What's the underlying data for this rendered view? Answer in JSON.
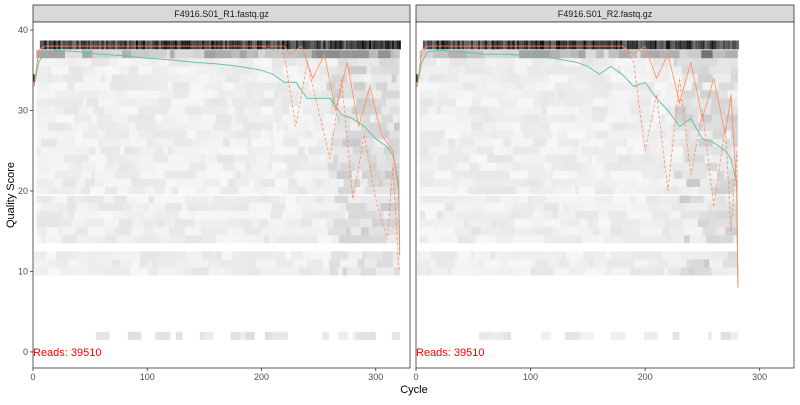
{
  "figure": {
    "y_axis_title": "Quality Score",
    "x_axis_title": "Cycle"
  },
  "colors": {
    "strip_fill": "#d9d9d9",
    "strip_border": "#333333",
    "panel_border": "#333333",
    "mean_line": "#66c2a5",
    "quantile_line": "#fc8d62",
    "reads_text": "#ff0000",
    "tick_text": "#4d4d4d"
  },
  "chart_data": [
    {
      "type": "line",
      "title": "F4916.S01_R1.fastq.gz",
      "reads_label": "Reads:  39510",
      "xlim": [
        0,
        330
      ],
      "ylim": [
        -2,
        41
      ],
      "x_ticks": [
        0,
        100,
        200,
        300
      ],
      "y_ticks": [
        0,
        10,
        20,
        30,
        40
      ],
      "read_length": 321,
      "series": [
        {
          "key": "mean",
          "x": [
            1,
            5,
            10,
            20,
            40,
            60,
            80,
            100,
            120,
            140,
            160,
            180,
            200,
            210,
            220,
            230,
            240,
            250,
            260,
            270,
            280,
            290,
            300,
            310,
            315,
            320,
            321
          ],
          "values": [
            33,
            36,
            37.2,
            37.5,
            37.3,
            37,
            36.8,
            36.5,
            36.3,
            36,
            35.8,
            35.5,
            35,
            34.5,
            33.5,
            33.5,
            31.5,
            31.5,
            31.5,
            29.5,
            29,
            28,
            26.5,
            25.5,
            24.5,
            21,
            12.5
          ]
        },
        {
          "key": "median",
          "x": [
            1,
            5,
            10,
            50,
            100,
            150,
            200,
            220,
            225,
            235,
            245,
            255,
            265,
            275,
            285,
            295,
            305,
            315,
            320,
            321
          ],
          "values": [
            33,
            37.5,
            38,
            38,
            38,
            38,
            38,
            38,
            37,
            38,
            34,
            37,
            30,
            36,
            28,
            33,
            27,
            25,
            20,
            12
          ]
        },
        {
          "key": "q25",
          "x": [
            1,
            5,
            10,
            100,
            200,
            220,
            230,
            240,
            250,
            260,
            270,
            280,
            290,
            300,
            310,
            315,
            320,
            321
          ],
          "values": [
            33,
            37,
            38,
            38,
            38,
            37,
            28,
            36,
            30,
            24,
            34,
            19,
            27,
            19,
            14,
            23,
            11,
            10
          ]
        }
      ]
    },
    {
      "type": "line",
      "title": "F4916.S01_R2.fastq.gz",
      "reads_label": "Reads:  39510",
      "xlim": [
        0,
        330
      ],
      "ylim": [
        -2,
        41
      ],
      "x_ticks": [
        0,
        100,
        200,
        300
      ],
      "y_ticks": [
        0,
        10,
        20,
        30,
        40
      ],
      "read_length": 281,
      "series": [
        {
          "key": "mean",
          "x": [
            1,
            5,
            10,
            20,
            40,
            60,
            80,
            100,
            120,
            140,
            150,
            160,
            170,
            180,
            190,
            200,
            210,
            220,
            230,
            240,
            250,
            260,
            270,
            275,
            280,
            281
          ],
          "values": [
            33,
            36,
            37.3,
            37.5,
            37.3,
            37,
            37,
            36.8,
            36.5,
            36,
            35.5,
            34.5,
            35.5,
            34.5,
            33,
            33.5,
            31.5,
            30,
            28,
            29,
            26.5,
            26,
            25,
            24,
            21,
            8
          ]
        },
        {
          "key": "median",
          "x": [
            1,
            5,
            10,
            100,
            180,
            190,
            200,
            210,
            220,
            230,
            240,
            250,
            260,
            270,
            275,
            280,
            281
          ],
          "values": [
            33,
            37.5,
            38,
            38,
            38,
            37,
            38,
            34,
            37,
            31,
            36,
            29,
            34,
            27,
            32,
            20,
            8
          ]
        },
        {
          "key": "q25",
          "x": [
            1,
            5,
            10,
            100,
            180,
            190,
            200,
            210,
            220,
            230,
            240,
            250,
            260,
            270,
            275,
            280,
            281
          ],
          "values": [
            33,
            37,
            38,
            38,
            38,
            36,
            25,
            32,
            20,
            34,
            22,
            30,
            18,
            28,
            15,
            25,
            8
          ]
        }
      ]
    }
  ]
}
